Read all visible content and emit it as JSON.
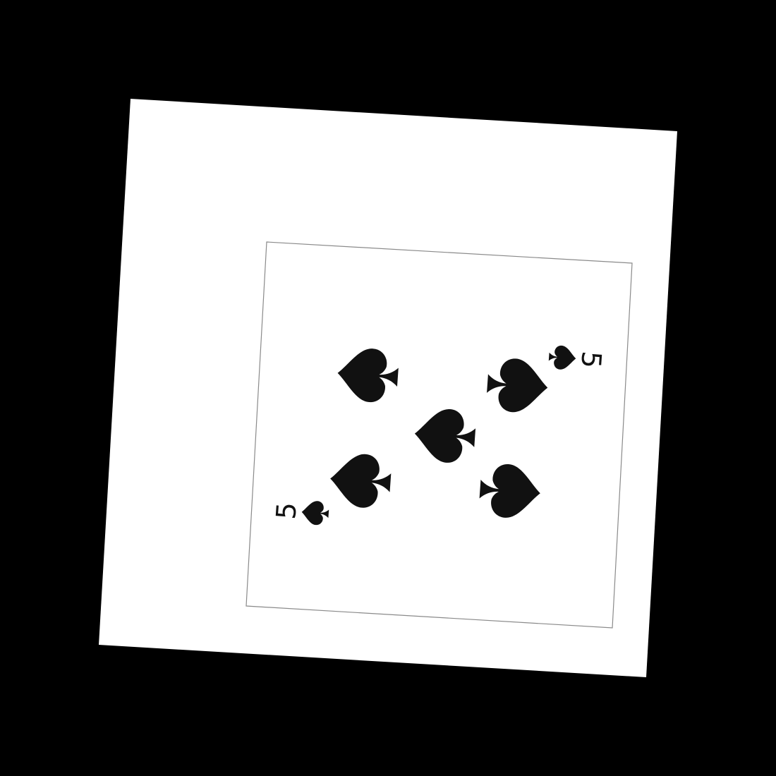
{
  "photo": {
    "background_color": "#000000",
    "sheet_color": "#ffffff",
    "border_color": "#8a8a8a",
    "pip_color": "#111111"
  },
  "card": {
    "rank": "5",
    "suit": "spades",
    "suit_symbol": "♠",
    "pip_count": 5,
    "pip_icon": "spade-icon"
  }
}
